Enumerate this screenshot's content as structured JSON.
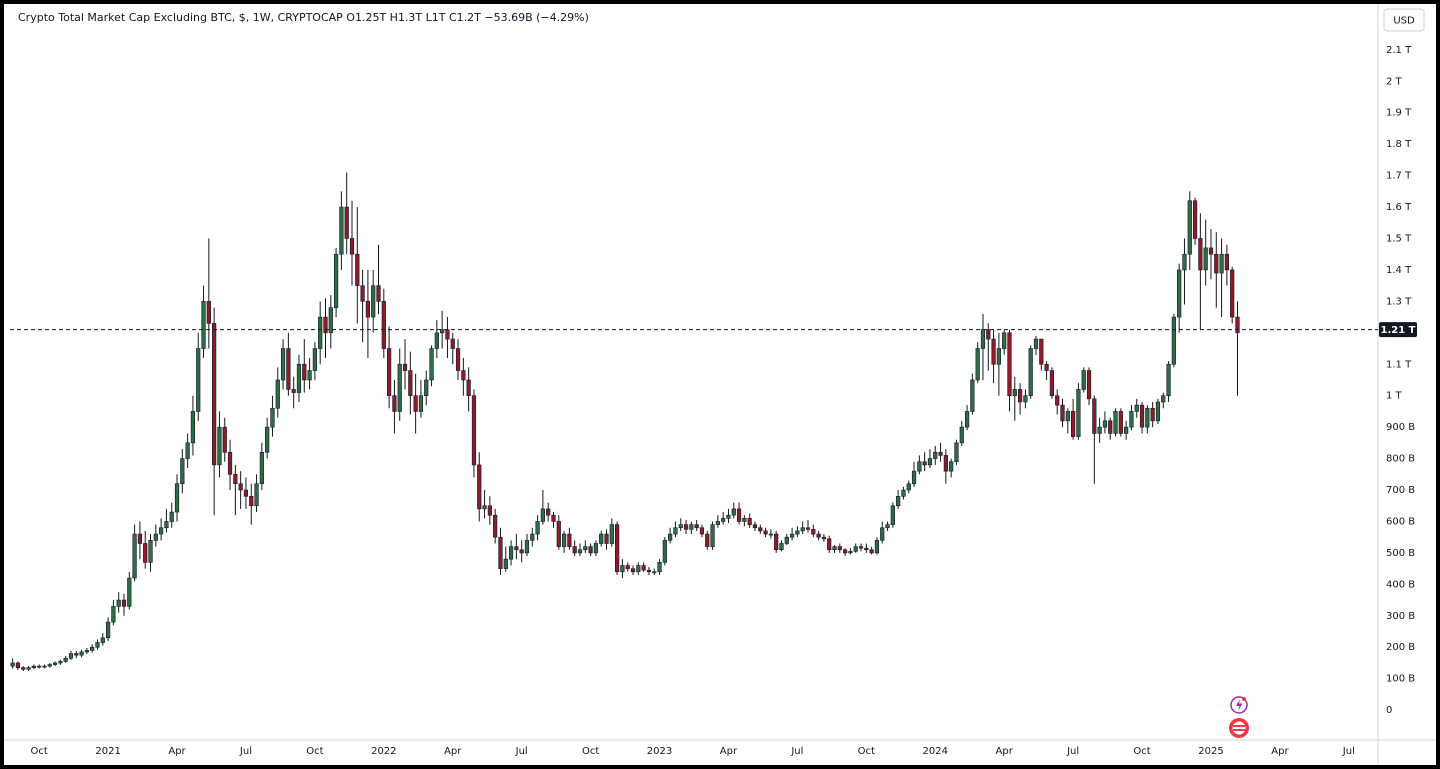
{
  "chart_data": {
    "type": "candlestick",
    "title": "Crypto Total Market Cap Excluding BTC, $, 1W, CRYPTOCAP  O1.25T  H1.3T  L1T  C1.2T  −53.69B (−4.29%)",
    "currency": "USD",
    "up_color": "#2f6b45",
    "down_color": "#8a1c2c",
    "grid": false,
    "ylim": [
      -95,
      2233
    ],
    "yticks": [
      0,
      {
        "value": 100,
        "label": "100 B"
      },
      {
        "value": 200,
        "label": "200 B"
      },
      {
        "value": 300,
        "label": "300 B"
      },
      {
        "value": 400,
        "label": "400 B"
      },
      {
        "value": 500,
        "label": "500 B"
      },
      {
        "value": 600,
        "label": "600 B"
      },
      {
        "value": 700,
        "label": "700 B"
      },
      {
        "value": 800,
        "label": "800 B"
      },
      {
        "value": 900,
        "label": "900 B"
      },
      {
        "value": 1000,
        "label": "1 T"
      },
      {
        "value": 1100,
        "label": "1.1 T"
      },
      {
        "value": 1200,
        "label": "1.2 T"
      },
      {
        "value": 1300,
        "label": "1.3 T"
      },
      {
        "value": 1400,
        "label": "1.4 T"
      },
      {
        "value": 1500,
        "label": "1.5 T"
      },
      {
        "value": 1600,
        "label": "1.6 T"
      },
      {
        "value": 1700,
        "label": "1.7 T"
      },
      {
        "value": 1800,
        "label": "1.8 T"
      },
      {
        "value": 1900,
        "label": "1.9 T"
      },
      {
        "value": 2000,
        "label": "2 T"
      },
      {
        "value": 2100,
        "label": "2.1 T"
      }
    ],
    "price_line": {
      "value": 1210,
      "label": "1.21 T"
    },
    "categories": [
      null,
      null,
      null,
      null,
      null,
      "Oct",
      null,
      null,
      null,
      null,
      null,
      null,
      null,
      null,
      null,
      null,
      null,
      null,
      "2021",
      null,
      null,
      null,
      null,
      null,
      null,
      null,
      null,
      null,
      null,
      null,
      null,
      "Apr",
      null,
      null,
      null,
      null,
      null,
      null,
      null,
      null,
      null,
      null,
      null,
      null,
      "Jul",
      null,
      null,
      null,
      null,
      null,
      null,
      null,
      null,
      null,
      null,
      null,
      null,
      "Oct",
      null,
      null,
      null,
      null,
      null,
      null,
      null,
      null,
      null,
      null,
      null,
      null,
      "2022",
      null,
      null,
      null,
      null,
      null,
      null,
      null,
      null,
      null,
      null,
      null,
      null,
      "Apr",
      null,
      null,
      null,
      null,
      null,
      null,
      null,
      null,
      null,
      null,
      null,
      null,
      "Jul",
      null,
      null,
      null,
      null,
      null,
      null,
      null,
      null,
      null,
      null,
      null,
      null,
      "Oct",
      null,
      null,
      null,
      null,
      null,
      null,
      null,
      null,
      null,
      null,
      null,
      null,
      "2023",
      null,
      null,
      null,
      null,
      null,
      null,
      null,
      null,
      null,
      null,
      null,
      null,
      "Apr",
      null,
      null,
      null,
      null,
      null,
      null,
      null,
      null,
      null,
      null,
      null,
      null,
      "Jul",
      null,
      null,
      null,
      null,
      null,
      null,
      null,
      null,
      null,
      null,
      null,
      null,
      "Oct",
      null,
      null,
      null,
      null,
      null,
      null,
      null,
      null,
      null,
      null,
      null,
      null,
      "2024",
      null,
      null,
      null,
      null,
      null,
      null,
      null,
      null,
      null,
      null,
      null,
      null,
      "Apr",
      null,
      null,
      null,
      null,
      null,
      null,
      null,
      null,
      null,
      null,
      null,
      null,
      "Jul",
      null,
      null,
      null,
      null,
      null,
      null,
      null,
      null,
      null,
      null,
      null,
      null,
      "Oct",
      null,
      null,
      null,
      null,
      null,
      null,
      null,
      null,
      null,
      null,
      null,
      null,
      "2025",
      null,
      null,
      null,
      null,
      null,
      null,
      null,
      null,
      null,
      null,
      null,
      null,
      "Apr",
      null,
      null,
      null,
      null,
      null,
      null,
      null,
      null,
      null,
      null,
      null,
      null,
      "Jul",
      null,
      null,
      null,
      null,
      null
    ],
    "open": [
      140,
      150,
      135,
      130,
      135,
      140,
      138,
      140,
      145,
      150,
      155,
      165,
      180,
      175,
      185,
      190,
      200,
      215,
      230,
      280,
      330,
      350,
      330,
      420,
      560,
      530,
      470,
      540,
      560,
      580,
      600,
      630,
      720,
      800,
      850,
      950,
      1150,
      1300,
      1230,
      780,
      900,
      820,
      750,
      720,
      700,
      680,
      650,
      720,
      820,
      900,
      960,
      1050,
      1150,
      1020,
      1010,
      1100,
      1050,
      1080,
      1150,
      1250,
      1200,
      1280,
      1450,
      1600,
      1500,
      1450,
      1350,
      1300,
      1250,
      1350,
      1300,
      1150,
      1000,
      950,
      1100,
      1080,
      1000,
      950,
      1000,
      1050,
      1150,
      1200,
      1210,
      1180,
      1150,
      1080,
      1050,
      1000,
      780,
      640,
      650,
      620,
      550,
      450,
      480,
      520,
      510,
      500,
      540,
      560,
      600,
      640,
      620,
      600,
      520,
      560,
      520,
      500,
      510,
      520,
      500,
      530,
      560,
      530,
      590,
      440,
      460,
      450,
      440,
      460,
      445,
      440,
      440,
      470,
      540,
      560,
      580,
      590,
      575,
      590,
      580,
      560,
      520,
      590,
      600,
      610,
      620,
      640,
      600,
      610,
      590,
      580,
      570,
      560,
      560,
      510,
      530,
      550,
      560,
      570,
      580,
      575,
      560,
      550,
      545,
      510,
      520,
      510,
      500,
      505,
      520,
      515,
      510,
      500,
      540,
      580,
      590,
      650,
      680,
      700,
      720,
      760,
      790,
      780,
      800,
      820,
      810,
      760,
      790,
      850,
      900,
      950,
      1050,
      1150,
      1210,
      1180,
      1100,
      1150,
      1200,
      1000,
      1020,
      980,
      1000,
      1150,
      1180,
      1100,
      1080,
      1000,
      970,
      920,
      950,
      870,
      1020,
      1080,
      990,
      880,
      900,
      920,
      880,
      950,
      880,
      900,
      950,
      970,
      900,
      960,
      920,
      980,
      1000,
      1100,
      1250,
      1400,
      1450,
      1620,
      1500,
      1400,
      1470,
      1450,
      1390,
      1450,
      1400,
      1250,
      null,
      null,
      null,
      null,
      null,
      null,
      null,
      null,
      null,
      null,
      null,
      null,
      null,
      null,
      null,
      null,
      null,
      null,
      null,
      null,
      null,
      null,
      null,
      null,
      null,
      null
    ],
    "high": [
      165,
      155,
      140,
      140,
      145,
      145,
      145,
      150,
      155,
      160,
      172,
      188,
      188,
      192,
      198,
      210,
      225,
      245,
      295,
      350,
      375,
      370,
      440,
      590,
      600,
      570,
      560,
      590,
      610,
      640,
      660,
      750,
      830,
      880,
      1000,
      1200,
      1350,
      1500,
      1280,
      950,
      930,
      860,
      780,
      760,
      740,
      720,
      750,
      850,
      930,
      1000,
      1090,
      1180,
      1200,
      1060,
      1130,
      1180,
      1120,
      1170,
      1300,
      1310,
      1320,
      1470,
      1650,
      1710,
      1620,
      1600,
      1400,
      1400,
      1400,
      1480,
      1340,
      1220,
      1050,
      1150,
      1180,
      1140,
      1070,
      1050,
      1080,
      1160,
      1240,
      1270,
      1250,
      1200,
      1180,
      1120,
      1090,
      1020,
      820,
      700,
      680,
      640,
      580,
      520,
      540,
      560,
      540,
      560,
      580,
      620,
      700,
      660,
      630,
      620,
      570,
      580,
      540,
      530,
      540,
      530,
      540,
      570,
      575,
      610,
      600,
      480,
      470,
      460,
      470,
      470,
      455,
      450,
      480,
      550,
      580,
      600,
      610,
      605,
      600,
      605,
      590,
      570,
      600,
      620,
      630,
      640,
      660,
      660,
      620,
      625,
      600,
      590,
      580,
      575,
      570,
      540,
      560,
      580,
      585,
      600,
      605,
      590,
      570,
      560,
      555,
      525,
      530,
      515,
      515,
      530,
      530,
      530,
      520,
      550,
      600,
      600,
      660,
      700,
      710,
      730,
      790,
      810,
      820,
      830,
      840,
      850,
      830,
      800,
      860,
      920,
      970,
      1070,
      1170,
      1260,
      1230,
      1210,
      1200,
      1210,
      1210,
      1060,
      1040,
      1020,
      1160,
      1190,
      1180,
      1110,
      1090,
      1020,
      990,
      960,
      990,
      1040,
      1090,
      1090,
      1000,
      930,
      950,
      930,
      960,
      960,
      920,
      970,
      990,
      980,
      970,
      980,
      990,
      1010,
      1110,
      1260,
      1420,
      1500,
      1650,
      1630,
      1580,
      1560,
      1530,
      1520,
      1500,
      1480,
      1410,
      1300,
      null,
      null,
      null,
      null,
      null,
      null,
      null,
      null,
      null,
      null,
      null,
      null,
      null,
      null,
      null,
      null,
      null,
      null,
      null,
      null,
      null,
      null,
      null,
      null,
      null,
      null
    ],
    "low": [
      132,
      128,
      124,
      125,
      130,
      132,
      133,
      135,
      140,
      144,
      150,
      160,
      165,
      168,
      178,
      183,
      192,
      205,
      220,
      270,
      310,
      300,
      320,
      410,
      480,
      450,
      440,
      520,
      540,
      565,
      580,
      600,
      690,
      770,
      810,
      920,
      1120,
      1150,
      620,
      740,
      790,
      700,
      620,
      640,
      640,
      590,
      630,
      700,
      800,
      870,
      930,
      1020,
      1000,
      960,
      980,
      1010,
      1020,
      1050,
      1100,
      1120,
      1150,
      1250,
      1400,
      1450,
      1350,
      1230,
      1170,
      1120,
      1200,
      1260,
      1120,
      960,
      880,
      920,
      1020,
      940,
      880,
      930,
      970,
      1030,
      1120,
      1150,
      1120,
      1100,
      1050,
      1000,
      950,
      740,
      600,
      610,
      590,
      530,
      430,
      440,
      460,
      480,
      470,
      490,
      520,
      540,
      590,
      600,
      580,
      510,
      500,
      510,
      490,
      490,
      500,
      490,
      490,
      520,
      510,
      520,
      430,
      420,
      440,
      430,
      430,
      440,
      430,
      430,
      430,
      460,
      530,
      550,
      570,
      560,
      560,
      570,
      550,
      510,
      510,
      580,
      590,
      595,
      610,
      590,
      585,
      580,
      570,
      560,
      550,
      545,
      500,
      505,
      525,
      540,
      550,
      560,
      565,
      550,
      540,
      535,
      500,
      500,
      500,
      490,
      495,
      500,
      505,
      500,
      495,
      495,
      530,
      570,
      580,
      640,
      670,
      690,
      710,
      750,
      760,
      770,
      780,
      790,
      720,
      740,
      780,
      840,
      890,
      940,
      1040,
      1050,
      1080,
      1040,
      1000,
      1130,
      950,
      920,
      940,
      960,
      990,
      1130,
      1080,
      1050,
      990,
      940,
      900,
      880,
      860,
      860,
      1010,
      970,
      720,
      850,
      880,
      860,
      870,
      870,
      860,
      890,
      930,
      880,
      880,
      900,
      910,
      960,
      980,
      1090,
      1200,
      1290,
      1400,
      1480,
      1210,
      1350,
      1370,
      1280,
      1250,
      1350,
      1230,
      1000,
      null,
      null,
      null,
      null,
      null,
      null,
      null,
      null,
      null,
      null,
      null,
      null,
      null,
      null,
      null,
      null,
      null,
      null,
      null,
      null,
      null,
      null,
      null,
      null,
      null,
      null
    ],
    "close": [
      150,
      135,
      130,
      135,
      140,
      138,
      140,
      145,
      150,
      155,
      165,
      180,
      175,
      185,
      190,
      200,
      215,
      230,
      280,
      330,
      350,
      330,
      420,
      560,
      530,
      470,
      540,
      560,
      580,
      600,
      630,
      720,
      800,
      850,
      950,
      1150,
      1300,
      1230,
      780,
      900,
      820,
      750,
      720,
      700,
      680,
      650,
      720,
      820,
      900,
      960,
      1050,
      1150,
      1020,
      1010,
      1100,
      1050,
      1080,
      1150,
      1250,
      1200,
      1280,
      1450,
      1600,
      1500,
      1450,
      1350,
      1300,
      1250,
      1350,
      1300,
      1150,
      1000,
      950,
      1100,
      1080,
      1000,
      950,
      1000,
      1050,
      1150,
      1200,
      1210,
      1180,
      1150,
      1080,
      1050,
      1000,
      780,
      640,
      650,
      620,
      550,
      450,
      480,
      520,
      510,
      500,
      540,
      560,
      600,
      640,
      620,
      600,
      520,
      560,
      520,
      500,
      510,
      520,
      500,
      530,
      560,
      530,
      590,
      440,
      460,
      450,
      440,
      460,
      445,
      440,
      440,
      470,
      540,
      560,
      580,
      590,
      575,
      590,
      580,
      560,
      520,
      590,
      600,
      610,
      620,
      640,
      600,
      610,
      590,
      580,
      570,
      560,
      560,
      510,
      530,
      550,
      560,
      570,
      580,
      575,
      560,
      550,
      545,
      510,
      520,
      510,
      500,
      505,
      520,
      515,
      510,
      500,
      540,
      580,
      590,
      650,
      680,
      700,
      720,
      760,
      790,
      780,
      800,
      820,
      810,
      760,
      790,
      850,
      900,
      950,
      1050,
      1150,
      1210,
      1180,
      1100,
      1150,
      1200,
      1000,
      1020,
      980,
      1000,
      1150,
      1180,
      1100,
      1080,
      1000,
      970,
      920,
      950,
      870,
      1020,
      1080,
      990,
      880,
      900,
      920,
      880,
      950,
      880,
      900,
      950,
      970,
      900,
      960,
      920,
      980,
      1000,
      1100,
      1250,
      1400,
      1450,
      1620,
      1500,
      1400,
      1470,
      1450,
      1390,
      1450,
      1400,
      1250,
      1200,
      null,
      null,
      null,
      null,
      null,
      null,
      null,
      null,
      null,
      null,
      null,
      null,
      null,
      null,
      null,
      null,
      null,
      null,
      null,
      null,
      null,
      null,
      null,
      null,
      null,
      null
    ]
  }
}
